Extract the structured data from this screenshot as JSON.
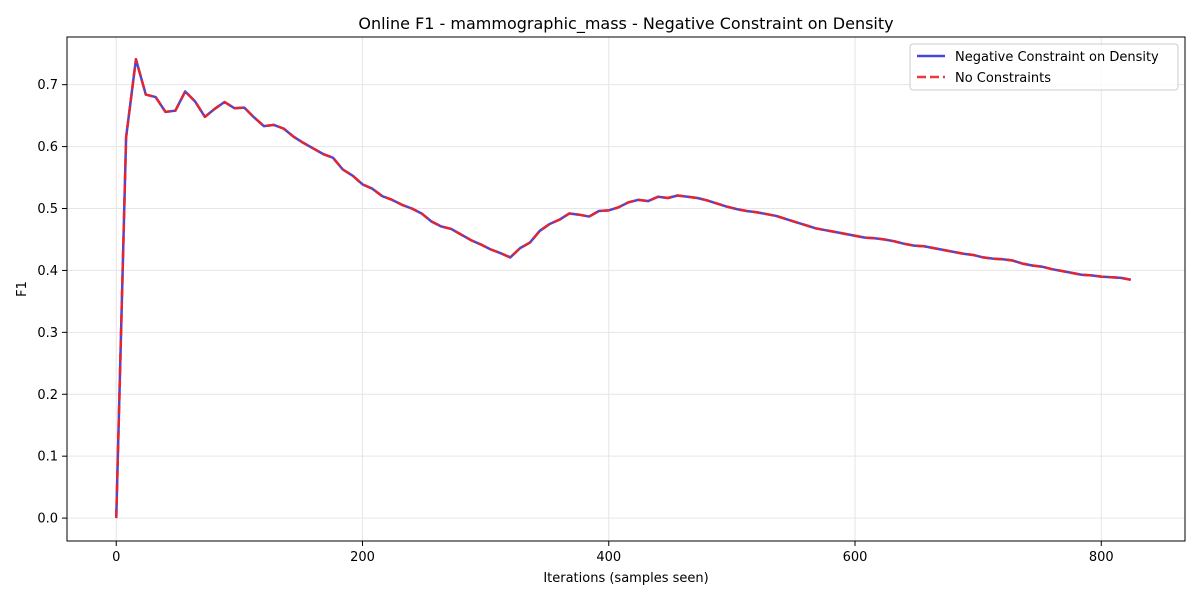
{
  "chart_data": {
    "type": "line",
    "title": "Online F1 - mammographic_mass - Negative Constraint on Density",
    "xlabel": "Iterations (samples seen)",
    "ylabel": "F1",
    "xlim": [
      -40,
      868
    ],
    "ylim": [
      -0.037,
      0.777
    ],
    "xticks": [
      0,
      200,
      400,
      600,
      800
    ],
    "yticks": [
      0.0,
      0.1,
      0.2,
      0.3,
      0.4,
      0.5,
      0.6,
      0.7
    ],
    "xtick_labels": [
      "0",
      "200",
      "400",
      "600",
      "800"
    ],
    "ytick_labels": [
      "0.0",
      "0.1",
      "0.2",
      "0.3",
      "0.4",
      "0.5",
      "0.6",
      "0.7"
    ],
    "grid": true,
    "legend_position": "top-right",
    "x": [
      0,
      8,
      16,
      24,
      32,
      40,
      48,
      56,
      64,
      72,
      80,
      88,
      96,
      104,
      112,
      120,
      128,
      136,
      144,
      152,
      160,
      168,
      176,
      184,
      192,
      200,
      208,
      216,
      224,
      232,
      240,
      248,
      256,
      264,
      272,
      280,
      288,
      296,
      304,
      312,
      320,
      328,
      336,
      344,
      352,
      360,
      368,
      376,
      384,
      392,
      400,
      408,
      416,
      424,
      432,
      440,
      448,
      456,
      464,
      472,
      480,
      488,
      496,
      504,
      512,
      520,
      528,
      536,
      544,
      552,
      560,
      568,
      576,
      584,
      592,
      600,
      608,
      616,
      624,
      632,
      640,
      648,
      656,
      664,
      672,
      680,
      688,
      696,
      704,
      712,
      720,
      728,
      736,
      744,
      752,
      760,
      768,
      776,
      784,
      792,
      800,
      808,
      816,
      824
    ],
    "series": [
      {
        "name": "Negative Constraint on Density",
        "color": "#3333dd",
        "style": "solid",
        "values": [
          0.0,
          0.615,
          0.741,
          0.684,
          0.68,
          0.656,
          0.658,
          0.689,
          0.673,
          0.648,
          0.661,
          0.672,
          0.662,
          0.663,
          0.647,
          0.633,
          0.635,
          0.629,
          0.616,
          0.606,
          0.597,
          0.588,
          0.582,
          0.563,
          0.553,
          0.539,
          0.532,
          0.52,
          0.514,
          0.506,
          0.5,
          0.492,
          0.479,
          0.471,
          0.467,
          0.458,
          0.449,
          0.442,
          0.434,
          0.428,
          0.421,
          0.436,
          0.445,
          0.464,
          0.475,
          0.482,
          0.492,
          0.49,
          0.487,
          0.496,
          0.497,
          0.502,
          0.51,
          0.514,
          0.512,
          0.519,
          0.517,
          0.521,
          0.519,
          0.517,
          0.513,
          0.508,
          0.503,
          0.499,
          0.496,
          0.494,
          0.491,
          0.488,
          0.483,
          0.478,
          0.473,
          0.468,
          0.465,
          0.462,
          0.459,
          0.456,
          0.453,
          0.452,
          0.45,
          0.447,
          0.443,
          0.44,
          0.439,
          0.436,
          0.433,
          0.43,
          0.427,
          0.425,
          0.421,
          0.419,
          0.418,
          0.416,
          0.411,
          0.408,
          0.406,
          0.402,
          0.399,
          0.396,
          0.393,
          0.392,
          0.39,
          0.389,
          0.388,
          0.385
        ]
      },
      {
        "name": "No Constraints",
        "color": "#ee2222",
        "style": "dashed",
        "values": [
          0.0,
          0.615,
          0.741,
          0.684,
          0.68,
          0.656,
          0.658,
          0.689,
          0.673,
          0.648,
          0.661,
          0.672,
          0.662,
          0.663,
          0.647,
          0.633,
          0.635,
          0.629,
          0.616,
          0.606,
          0.597,
          0.588,
          0.582,
          0.563,
          0.553,
          0.539,
          0.532,
          0.52,
          0.514,
          0.506,
          0.5,
          0.492,
          0.479,
          0.471,
          0.467,
          0.458,
          0.449,
          0.442,
          0.434,
          0.428,
          0.421,
          0.436,
          0.445,
          0.464,
          0.475,
          0.482,
          0.492,
          0.49,
          0.487,
          0.496,
          0.497,
          0.502,
          0.51,
          0.514,
          0.512,
          0.519,
          0.517,
          0.521,
          0.519,
          0.517,
          0.513,
          0.508,
          0.503,
          0.499,
          0.496,
          0.494,
          0.491,
          0.488,
          0.483,
          0.478,
          0.473,
          0.468,
          0.465,
          0.462,
          0.459,
          0.456,
          0.453,
          0.452,
          0.45,
          0.447,
          0.443,
          0.44,
          0.439,
          0.436,
          0.433,
          0.43,
          0.427,
          0.425,
          0.421,
          0.419,
          0.418,
          0.416,
          0.411,
          0.408,
          0.406,
          0.402,
          0.399,
          0.396,
          0.393,
          0.392,
          0.39,
          0.389,
          0.388,
          0.385
        ]
      }
    ]
  }
}
